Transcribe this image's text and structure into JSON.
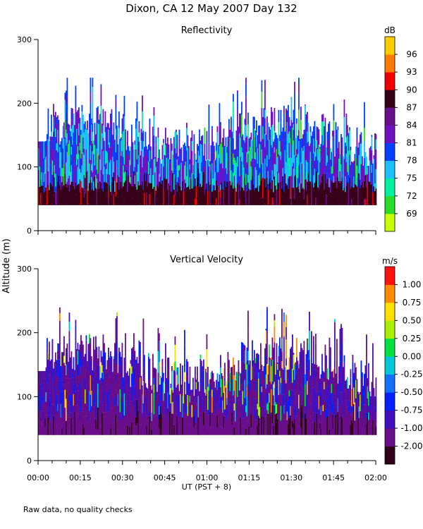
{
  "figure": {
    "title": "Dixon, CA 12 May 2007  Day 132",
    "ylabel": "Altitude (m)",
    "xlabel": "UT  (PST + 8)",
    "note": "Raw data, no quality checks"
  },
  "chart_data": [
    {
      "type": "heatmap",
      "title": "Reflectivity",
      "units": "dB",
      "xlabel": "UT  (PST + 8)",
      "ylabel": "Altitude (m)",
      "xlim_minutes": [
        0,
        120
      ],
      "ylim": [
        0,
        300
      ],
      "x_ticks": [
        "00:00",
        "00:15",
        "00:30",
        "00:45",
        "01:00",
        "01:15",
        "01:30",
        "01:45",
        "02:00"
      ],
      "y_ticks": [
        "0",
        "100",
        "200",
        "300"
      ],
      "y_tick_values": [
        0,
        100,
        200,
        300
      ],
      "data_floor_m": 40,
      "colorbar_ticks": [
        "69",
        "72",
        "75",
        "78",
        "81",
        "84",
        "87",
        "90",
        "93",
        "96"
      ],
      "colorbar_colors": [
        "#c8ff00",
        "#28dc28",
        "#00f0a0",
        "#1ebeff",
        "#0040ff",
        "#7010c0",
        "#6a0d8a",
        "#380018",
        "#f00000",
        "#ff7a00",
        "#ffcc00"
      ]
    },
    {
      "type": "heatmap",
      "title": "Vertical Velocity",
      "units": "m/s",
      "xlabel": "UT  (PST + 8)",
      "ylabel": "Altitude (m)",
      "xlim_minutes": [
        0,
        120
      ],
      "ylim": [
        0,
        300
      ],
      "x_ticks": [
        "00:00",
        "00:15",
        "00:30",
        "00:45",
        "01:00",
        "01:15",
        "01:30",
        "01:45",
        "02:00"
      ],
      "y_ticks": [
        "0",
        "100",
        "200",
        "300"
      ],
      "y_tick_values": [
        0,
        100,
        200,
        300
      ],
      "data_floor_m": 40,
      "colorbar_ticks": [
        "-2.00",
        "-1.00",
        "-0.75",
        "-0.50",
        "-0.25",
        "0.00",
        "0.25",
        "0.50",
        "0.75",
        "1.00"
      ],
      "colorbar_colors": [
        "#300018",
        "#6a0d8a",
        "#4010c0",
        "#0020ff",
        "#1070ff",
        "#00c8d8",
        "#00e040",
        "#a8f000",
        "#ffe000",
        "#ff8c00",
        "#ff1010"
      ]
    }
  ]
}
